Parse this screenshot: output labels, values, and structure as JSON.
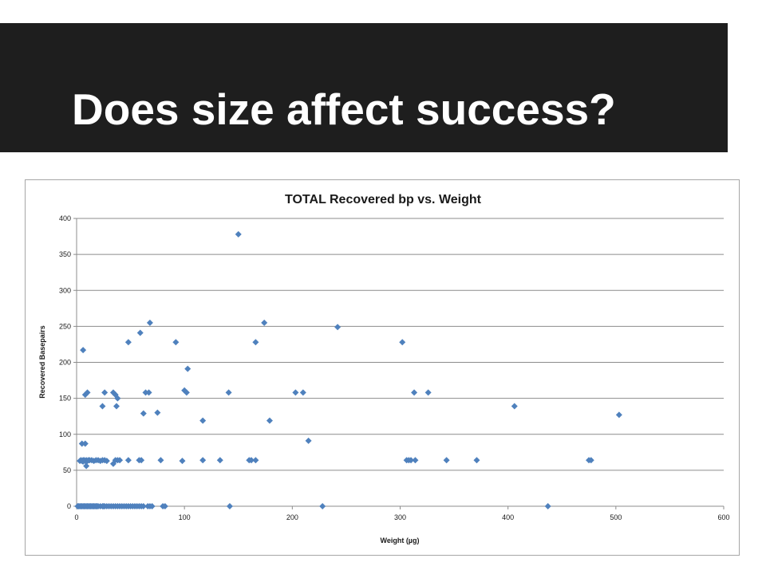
{
  "slide": {
    "title": "Does size affect success?"
  },
  "chart_data": {
    "type": "scatter",
    "title": "TOTAL Recovered bp vs. Weight",
    "xlabel": "Weight (µg)",
    "ylabel": "Recovered Basepairs",
    "xlim": [
      0,
      600
    ],
    "ylim": [
      0,
      400
    ],
    "xticks": [
      0,
      100,
      200,
      300,
      400,
      500,
      600
    ],
    "yticks": [
      0,
      50,
      100,
      150,
      200,
      250,
      300,
      350,
      400
    ],
    "grid": "horizontal",
    "legend": "none",
    "marker": "diamond",
    "color": "#4f81bd",
    "series": [
      {
        "x": [
          1,
          2,
          3,
          4,
          5,
          6,
          7,
          8,
          9,
          10,
          11,
          12,
          13,
          14,
          15,
          16,
          17,
          18,
          19,
          20,
          22,
          24,
          25,
          26,
          28,
          30,
          32,
          34,
          36,
          38,
          40,
          42,
          44,
          46,
          48,
          50,
          52,
          54,
          56,
          58,
          60,
          62,
          66,
          68,
          70,
          80,
          82,
          142,
          228,
          437,
          3,
          4,
          5,
          6,
          7,
          8,
          9,
          10,
          11,
          12,
          14,
          16,
          18,
          20,
          22,
          24,
          26,
          28,
          34,
          36,
          38,
          40,
          48,
          58,
          60,
          78,
          98,
          117,
          133,
          160,
          162,
          166,
          306,
          308,
          310,
          314,
          343,
          371,
          475,
          477,
          5,
          8,
          9,
          6,
          8,
          10,
          26,
          34,
          36,
          38,
          64,
          67,
          100,
          102,
          141,
          203,
          210,
          313,
          326,
          24,
          37,
          62,
          75,
          117,
          179,
          215,
          103,
          406,
          503,
          6,
          48,
          92,
          166,
          302,
          59,
          68,
          174,
          242,
          150
        ],
        "y": [
          0,
          0,
          0,
          0,
          0,
          0,
          0,
          0,
          0,
          0,
          0,
          0,
          0,
          0,
          0,
          0,
          0,
          0,
          0,
          0,
          0,
          0,
          0,
          0,
          0,
          0,
          0,
          0,
          0,
          0,
          0,
          0,
          0,
          0,
          0,
          0,
          0,
          0,
          0,
          0,
          0,
          0,
          0,
          0,
          0,
          0,
          0,
          0,
          0,
          0,
          63,
          64,
          63,
          64,
          64,
          63,
          64,
          63,
          64,
          64,
          64,
          63,
          64,
          64,
          63,
          64,
          64,
          63,
          59,
          64,
          64,
          64,
          64,
          64,
          64,
          64,
          63,
          64,
          64,
          64,
          64,
          64,
          64,
          64,
          64,
          64,
          64,
          64,
          64,
          64,
          87,
          87,
          56,
          62,
          155,
          158,
          158,
          158,
          155,
          150,
          158,
          158,
          161,
          158,
          158,
          158,
          158,
          158,
          158,
          139,
          139,
          129,
          130,
          119,
          119,
          91,
          191,
          139,
          127,
          217,
          228,
          228,
          228,
          228,
          241,
          255,
          255,
          249,
          378
        ]
      }
    ]
  }
}
